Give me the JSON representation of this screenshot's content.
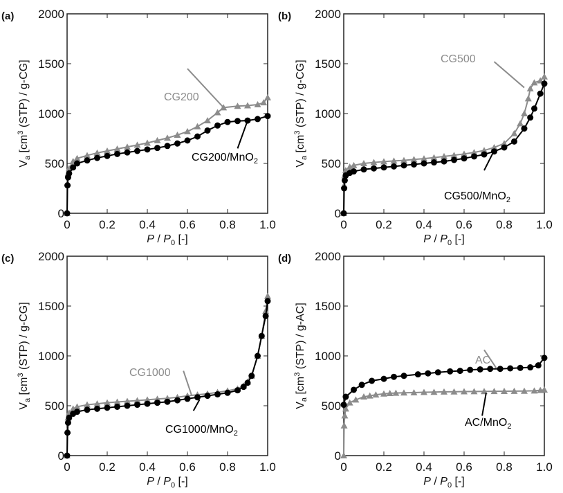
{
  "colors": {
    "black": "#000000",
    "gray": "#8c8c8c"
  },
  "chart_data": [
    {
      "type": "scatter",
      "panel": "(a)",
      "xlabel": "P / P0 [-]",
      "ylabel": "Va [cm3 (STP) / g-CG]",
      "xlim": [
        0,
        1
      ],
      "ylim": [
        0,
        2000
      ],
      "xticks": [
        "0",
        "0.2",
        "0.4",
        "0.6",
        "0.8",
        "1.0"
      ],
      "yticks": [
        "0",
        "500",
        "1000",
        "1500",
        "2000"
      ],
      "series": [
        {
          "name": "CG200",
          "color": "gray",
          "marker": "triangle",
          "x": [
            0,
            0.002,
            0.005,
            0.01,
            0.03,
            0.05,
            0.1,
            0.15,
            0.2,
            0.25,
            0.3,
            0.35,
            0.4,
            0.45,
            0.5,
            0.55,
            0.6,
            0.65,
            0.7,
            0.75,
            0.78,
            0.85,
            0.9,
            0.95,
            0.98,
            1.0
          ],
          "y": [
            0,
            300,
            400,
            450,
            520,
            550,
            580,
            605,
            625,
            645,
            665,
            685,
            705,
            730,
            755,
            785,
            820,
            870,
            930,
            1010,
            1060,
            1075,
            1080,
            1090,
            1110,
            1160
          ]
        },
        {
          "name": "CG200/MnO2",
          "color": "black",
          "marker": "circle",
          "x": [
            0,
            0.002,
            0.005,
            0.01,
            0.03,
            0.05,
            0.1,
            0.15,
            0.2,
            0.25,
            0.3,
            0.35,
            0.4,
            0.45,
            0.5,
            0.55,
            0.6,
            0.65,
            0.7,
            0.75,
            0.8,
            0.85,
            0.9,
            0.95,
            1.0
          ],
          "y": [
            0,
            280,
            360,
            400,
            460,
            500,
            530,
            555,
            575,
            595,
            610,
            625,
            640,
            655,
            675,
            700,
            730,
            770,
            830,
            880,
            915,
            925,
            930,
            945,
            975
          ]
        }
      ]
    },
    {
      "type": "scatter",
      "panel": "(b)",
      "xlabel": "P / P0 [-]",
      "ylabel": "Va [cm3 (STP) / g-CG]",
      "xlim": [
        0,
        1
      ],
      "ylim": [
        0,
        2000
      ],
      "xticks": [
        "0",
        "0.2",
        "0.4",
        "0.6",
        "0.8",
        "1.0"
      ],
      "yticks": [
        "0",
        "500",
        "1000",
        "1500",
        "2000"
      ],
      "series": [
        {
          "name": "CG500",
          "color": "gray",
          "marker": "triangle",
          "x": [
            0,
            0.002,
            0.005,
            0.01,
            0.03,
            0.05,
            0.1,
            0.15,
            0.2,
            0.25,
            0.3,
            0.35,
            0.4,
            0.45,
            0.5,
            0.55,
            0.6,
            0.65,
            0.7,
            0.75,
            0.8,
            0.85,
            0.88,
            0.9,
            0.92,
            0.93,
            0.95,
            0.98,
            1.0
          ],
          "y": [
            0,
            280,
            380,
            430,
            465,
            480,
            500,
            510,
            518,
            525,
            530,
            540,
            548,
            558,
            570,
            582,
            595,
            610,
            630,
            660,
            700,
            800,
            900,
            1000,
            1150,
            1250,
            1310,
            1330,
            1370
          ]
        },
        {
          "name": "CG500/MnO2",
          "color": "black",
          "marker": "circle",
          "x": [
            0,
            0.002,
            0.005,
            0.01,
            0.03,
            0.05,
            0.1,
            0.15,
            0.2,
            0.25,
            0.3,
            0.35,
            0.4,
            0.45,
            0.5,
            0.55,
            0.6,
            0.65,
            0.7,
            0.75,
            0.8,
            0.85,
            0.9,
            0.93,
            0.95,
            0.98,
            1.0
          ],
          "y": [
            0,
            250,
            330,
            380,
            405,
            420,
            440,
            450,
            460,
            470,
            480,
            490,
            500,
            510,
            520,
            535,
            550,
            570,
            590,
            620,
            660,
            720,
            850,
            960,
            1050,
            1200,
            1300
          ]
        }
      ]
    },
    {
      "type": "scatter",
      "panel": "(c)",
      "xlabel": "P / P0 [-]",
      "ylabel": "Va [cm3 (STP) / g-CG]",
      "xlim": [
        0,
        1
      ],
      "ylim": [
        0,
        2000
      ],
      "xticks": [
        "0",
        "0.2",
        "0.4",
        "0.6",
        "0.8",
        "1.0"
      ],
      "yticks": [
        "0",
        "500",
        "1000",
        "1500",
        "2000"
      ],
      "series": [
        {
          "name": "CG1000",
          "color": "gray",
          "marker": "triangle",
          "x": [
            0,
            0.002,
            0.005,
            0.01,
            0.03,
            0.05,
            0.1,
            0.15,
            0.2,
            0.25,
            0.3,
            0.35,
            0.4,
            0.45,
            0.5,
            0.55,
            0.6,
            0.65,
            0.7,
            0.75,
            0.8,
            0.85,
            0.88,
            0.9,
            0.92,
            0.95,
            0.97,
            0.99,
            1.0
          ],
          "y": [
            0,
            250,
            380,
            430,
            470,
            490,
            510,
            520,
            530,
            538,
            545,
            552,
            560,
            568,
            575,
            585,
            600,
            610,
            620,
            635,
            650,
            670,
            700,
            740,
            800,
            1000,
            1200,
            1450,
            1600
          ]
        },
        {
          "name": "CG1000/MnO2",
          "color": "black",
          "marker": "circle",
          "x": [
            0,
            0.002,
            0.005,
            0.01,
            0.03,
            0.05,
            0.1,
            0.15,
            0.2,
            0.25,
            0.3,
            0.35,
            0.4,
            0.45,
            0.5,
            0.55,
            0.6,
            0.65,
            0.7,
            0.75,
            0.8,
            0.85,
            0.88,
            0.9,
            0.92,
            0.95,
            0.97,
            0.99,
            1.0
          ],
          "y": [
            0,
            230,
            330,
            380,
            420,
            440,
            460,
            470,
            480,
            490,
            500,
            510,
            520,
            530,
            540,
            555,
            570,
            585,
            600,
            615,
            630,
            655,
            690,
            730,
            800,
            1000,
            1200,
            1400,
            1550
          ]
        }
      ]
    },
    {
      "type": "scatter",
      "panel": "(d)",
      "xlabel": "P / P0 [-]",
      "ylabel": "Va [cm3 (STP) / g-AC]",
      "xlim": [
        0,
        1
      ],
      "ylim": [
        0,
        2000
      ],
      "xticks": [
        "0",
        "0.2",
        "0.4",
        "0.6",
        "0.8",
        "1.0"
      ],
      "yticks": [
        "0",
        "500",
        "1000",
        "1500",
        "2000"
      ],
      "series": [
        {
          "name": "AC",
          "color": "gray",
          "marker": "triangle",
          "x": [
            0,
            0.002,
            0.005,
            0.01,
            0.03,
            0.06,
            0.1,
            0.13,
            0.16,
            0.2,
            0.23,
            0.26,
            0.3,
            0.35,
            0.4,
            0.45,
            0.5,
            0.55,
            0.6,
            0.65,
            0.7,
            0.75,
            0.8,
            0.85,
            0.9,
            0.95,
            0.98,
            1.0
          ],
          "y": [
            0,
            300,
            400,
            470,
            530,
            560,
            590,
            600,
            610,
            620,
            625,
            628,
            630,
            632,
            635,
            637,
            640,
            641,
            642,
            643,
            644,
            645,
            646,
            647,
            648,
            650,
            655,
            660
          ]
        },
        {
          "name": "AC/MnO2",
          "color": "black",
          "marker": "circle",
          "x": [
            0,
            0.01,
            0.05,
            0.09,
            0.14,
            0.2,
            0.25,
            0.3,
            0.37,
            0.42,
            0.47,
            0.53,
            0.58,
            0.63,
            0.68,
            0.73,
            0.78,
            0.83,
            0.88,
            0.93,
            0.97,
            1.0
          ],
          "y": [
            510,
            590,
            660,
            710,
            750,
            770,
            790,
            800,
            815,
            825,
            835,
            845,
            850,
            860,
            865,
            870,
            870,
            875,
            880,
            885,
            905,
            980
          ]
        }
      ]
    }
  ]
}
